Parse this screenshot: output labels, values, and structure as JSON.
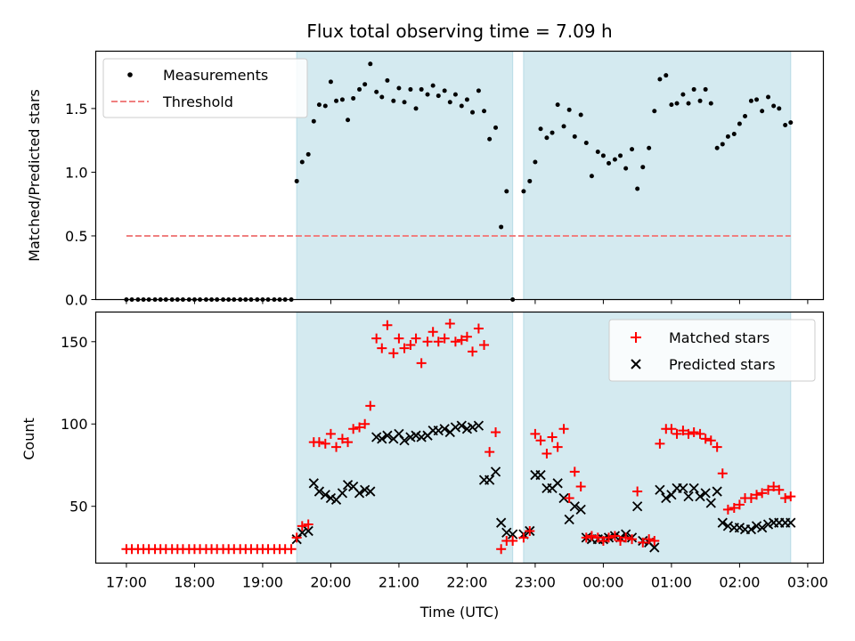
{
  "title": "Flux total observing time = 7.09 h",
  "colors": {
    "shade": "#d4eaf0",
    "threshold": "#f08080",
    "matched": "#ff0000",
    "predicted": "#000000",
    "measurement": "#000000"
  },
  "chart_data": [
    {
      "type": "scatter",
      "panel": "top",
      "ylabel": "Matched/Predicted stars",
      "xlim": [
        16.55,
        27.23
      ],
      "ylim": [
        0,
        1.95
      ],
      "yticks": [
        0.0,
        0.5,
        1.0,
        1.5
      ],
      "ytick_labels": [
        "0.0",
        "0.5",
        "1.0",
        "1.5"
      ],
      "shaded_periods": [
        [
          19.5,
          22.67
        ],
        [
          22.83,
          26.75
        ]
      ],
      "legend": {
        "position": "top-left",
        "entries": [
          "Measurements",
          "Threshold"
        ]
      },
      "threshold": {
        "name": "Threshold",
        "value": 0.5,
        "x_range": [
          17.0,
          26.75
        ]
      },
      "series": [
        {
          "name": "Measurements",
          "x": [
            17.0,
            17.08,
            17.17,
            17.25,
            17.33,
            17.42,
            17.5,
            17.58,
            17.67,
            17.75,
            17.83,
            17.92,
            18.0,
            18.08,
            18.17,
            18.25,
            18.33,
            18.42,
            18.5,
            18.58,
            18.67,
            18.75,
            18.83,
            18.92,
            19.0,
            19.08,
            19.17,
            19.25,
            19.33,
            19.42,
            19.5,
            19.58,
            19.67,
            19.75,
            19.83,
            19.92,
            20.0,
            20.08,
            20.17,
            20.25,
            20.33,
            20.42,
            20.5,
            20.58,
            20.67,
            20.75,
            20.83,
            20.92,
            21.0,
            21.08,
            21.17,
            21.25,
            21.33,
            21.42,
            21.5,
            21.58,
            21.67,
            21.75,
            21.83,
            21.92,
            22.0,
            22.08,
            22.17,
            22.25,
            22.33,
            22.42,
            22.5,
            22.58,
            22.67,
            22.83,
            22.92,
            23.0,
            23.08,
            23.17,
            23.25,
            23.33,
            23.42,
            23.5,
            23.58,
            23.67,
            23.75,
            23.83,
            23.92,
            24.0,
            24.08,
            24.17,
            24.25,
            24.33,
            24.42,
            24.5,
            24.58,
            24.67,
            24.75,
            24.83,
            24.92,
            25.0,
            25.08,
            25.17,
            25.25,
            25.33,
            25.42,
            25.5,
            25.58,
            25.67,
            25.75,
            25.83,
            25.92,
            26.0,
            26.08,
            26.17,
            26.25,
            26.33,
            26.42,
            26.5,
            26.58,
            26.67,
            26.75
          ],
          "y": [
            0,
            0,
            0,
            0,
            0,
            0,
            0,
            0,
            0,
            0,
            0,
            0,
            0,
            0,
            0,
            0,
            0,
            0,
            0,
            0,
            0,
            0,
            0,
            0,
            0,
            0,
            0,
            0,
            0,
            0,
            0.93,
            1.08,
            1.14,
            1.4,
            1.53,
            1.52,
            1.71,
            1.56,
            1.57,
            1.41,
            1.58,
            1.65,
            1.69,
            1.85,
            1.63,
            1.59,
            1.72,
            1.56,
            1.66,
            1.55,
            1.65,
            1.5,
            1.65,
            1.61,
            1.68,
            1.6,
            1.64,
            1.55,
            1.61,
            1.52,
            1.57,
            1.47,
            1.64,
            1.48,
            1.26,
            1.35,
            0.57,
            0.85,
            0,
            0.85,
            0.93,
            1.08,
            1.34,
            1.27,
            1.31,
            1.53,
            1.36,
            1.49,
            1.28,
            1.45,
            1.23,
            0.97,
            1.16,
            1.13,
            1.07,
            1.1,
            1.13,
            1.03,
            1.18,
            0.87,
            1.04,
            1.19,
            1.48,
            1.73,
            1.76,
            1.53,
            1.54,
            1.61,
            1.54,
            1.65,
            1.56,
            1.65,
            1.54,
            1.19,
            1.22,
            1.28,
            1.3,
            1.38,
            1.44,
            1.56,
            1.57,
            1.48,
            1.59,
            1.52,
            1.5,
            1.37,
            1.39
          ]
        }
      ]
    },
    {
      "type": "scatter",
      "panel": "bottom",
      "xlabel": "Time (UTC)",
      "ylabel": "Count",
      "xlim": [
        16.55,
        27.23
      ],
      "ylim": [
        15.5,
        168
      ],
      "yticks": [
        50,
        100,
        150
      ],
      "ytick_labels": [
        "50",
        "100",
        "150"
      ],
      "xticks": [
        17,
        18,
        19,
        20,
        21,
        22,
        23,
        24,
        25,
        26,
        27
      ],
      "xtick_labels": [
        "17:00",
        "18:00",
        "19:00",
        "20:00",
        "21:00",
        "22:00",
        "23:00",
        "00:00",
        "01:00",
        "02:00",
        "03:00"
      ],
      "shaded_periods": [
        [
          19.5,
          22.67
        ],
        [
          22.83,
          26.75
        ]
      ],
      "legend": {
        "position": "top-right",
        "entries": [
          "Matched stars",
          "Predicted stars"
        ]
      },
      "series": [
        {
          "name": "Matched stars",
          "marker": "plus",
          "x": [
            17.0,
            17.08,
            17.17,
            17.25,
            17.33,
            17.42,
            17.5,
            17.58,
            17.67,
            17.75,
            17.83,
            17.92,
            18.0,
            18.08,
            18.17,
            18.25,
            18.33,
            18.42,
            18.5,
            18.58,
            18.67,
            18.75,
            18.83,
            18.92,
            19.0,
            19.08,
            19.17,
            19.25,
            19.33,
            19.42,
            19.5,
            19.58,
            19.67,
            19.75,
            19.83,
            19.92,
            20.0,
            20.08,
            20.17,
            20.25,
            20.33,
            20.42,
            20.5,
            20.58,
            20.67,
            20.75,
            20.83,
            20.92,
            21.0,
            21.08,
            21.17,
            21.25,
            21.33,
            21.42,
            21.5,
            21.58,
            21.67,
            21.75,
            21.83,
            21.92,
            22.0,
            22.08,
            22.17,
            22.25,
            22.33,
            22.42,
            22.5,
            22.58,
            22.67,
            22.83,
            22.92,
            23.0,
            23.08,
            23.17,
            23.25,
            23.33,
            23.42,
            23.5,
            23.58,
            23.67,
            23.75,
            23.83,
            23.92,
            24.0,
            24.08,
            24.17,
            24.25,
            24.33,
            24.42,
            24.5,
            24.58,
            24.67,
            24.75,
            24.83,
            24.92,
            25.0,
            25.08,
            25.17,
            25.25,
            25.33,
            25.42,
            25.5,
            25.58,
            25.67,
            25.75,
            25.83,
            25.92,
            26.0,
            26.08,
            26.17,
            26.25,
            26.33,
            26.42,
            26.5,
            26.58,
            26.67,
            26.75
          ],
          "y": [
            24,
            24,
            24,
            24,
            24,
            24,
            24,
            24,
            24,
            24,
            24,
            24,
            24,
            24,
            24,
            24,
            24,
            24,
            24,
            24,
            24,
            24,
            24,
            24,
            24,
            24,
            24,
            24,
            24,
            24,
            31,
            38,
            39,
            89,
            89,
            88,
            94,
            86,
            91,
            89,
            97,
            98,
            100,
            111,
            152,
            146,
            160,
            143,
            152,
            146,
            148,
            152,
            137,
            150,
            156,
            150,
            152,
            161,
            150,
            151,
            153,
            144,
            158,
            148,
            83,
            95,
            24,
            29,
            29,
            31,
            35,
            94,
            90,
            82,
            92,
            86,
            97,
            55,
            71,
            62,
            31,
            32,
            31,
            29,
            31,
            32,
            29,
            31,
            30,
            59,
            28,
            30,
            29,
            88,
            97,
            97,
            94,
            96,
            94,
            95,
            94,
            91,
            90,
            86,
            70,
            48,
            49,
            51,
            55,
            55,
            57,
            58,
            60,
            62,
            60,
            55,
            56
          ]
        },
        {
          "name": "Predicted stars",
          "marker": "x",
          "x": [
            19.5,
            19.58,
            19.67,
            19.75,
            19.83,
            19.92,
            20.0,
            20.08,
            20.17,
            20.25,
            20.33,
            20.42,
            20.5,
            20.58,
            20.67,
            20.75,
            20.83,
            20.92,
            21.0,
            21.08,
            21.17,
            21.25,
            21.33,
            21.42,
            21.5,
            21.58,
            21.67,
            21.75,
            21.83,
            21.92,
            22.0,
            22.08,
            22.17,
            22.25,
            22.33,
            22.42,
            22.5,
            22.58,
            22.67,
            22.83,
            22.92,
            23.0,
            23.08,
            23.17,
            23.25,
            23.33,
            23.42,
            23.5,
            23.58,
            23.67,
            23.75,
            23.83,
            23.92,
            24.0,
            24.08,
            24.17,
            24.25,
            24.33,
            24.42,
            24.5,
            24.58,
            24.67,
            24.75,
            24.83,
            24.92,
            25.0,
            25.08,
            25.17,
            25.25,
            25.33,
            25.42,
            25.5,
            25.58,
            25.67,
            25.75,
            25.83,
            25.92,
            26.0,
            26.08,
            26.17,
            26.25,
            26.33,
            26.42,
            26.5,
            26.58,
            26.67,
            26.75
          ],
          "y": [
            30,
            34,
            35,
            64,
            59,
            57,
            55,
            54,
            58,
            63,
            62,
            58,
            60,
            59,
            92,
            91,
            93,
            91,
            94,
            90,
            92,
            93,
            92,
            93,
            96,
            96,
            97,
            95,
            98,
            99,
            97,
            98,
            99,
            66,
            66,
            71,
            40,
            34,
            33,
            33,
            35,
            69,
            69,
            61,
            61,
            64,
            55,
            42,
            50,
            48,
            31,
            30,
            30,
            30,
            31,
            32,
            31,
            33,
            31,
            50,
            29,
            28,
            25,
            60,
            55,
            57,
            61,
            61,
            56,
            61,
            56,
            58,
            52,
            59,
            40,
            38,
            37,
            37,
            36,
            36,
            38,
            37,
            39,
            40,
            40,
            40,
            40
          ]
        }
      ]
    }
  ]
}
